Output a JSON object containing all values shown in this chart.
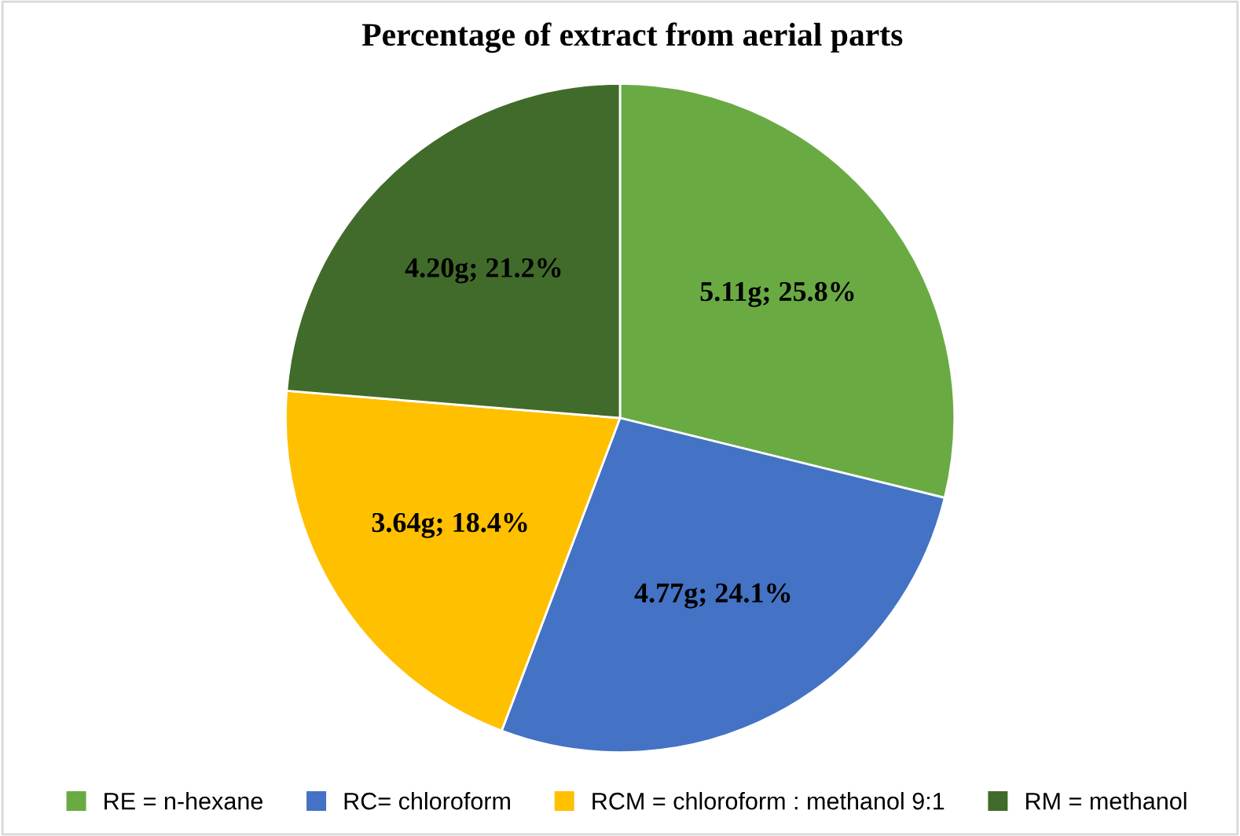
{
  "chart_data": {
    "type": "pie",
    "title": "Percentage of extract from aerial parts",
    "categories": [
      "RE = n-hexane",
      "RC= chloroform",
      "RCM = chloroform : methanol 9:1",
      "RM = methanol"
    ],
    "values": [
      5.11,
      4.77,
      3.64,
      4.2
    ],
    "value_labels": [
      "5.11g; 25.8%",
      "4.77g; 24.1%",
      "3.64g; 18.4%",
      "4.20g; 21.2%"
    ],
    "colors": [
      "#6aaa43",
      "#4472c4",
      "#ffc000",
      "#416b2a"
    ],
    "legend": "bottom"
  }
}
